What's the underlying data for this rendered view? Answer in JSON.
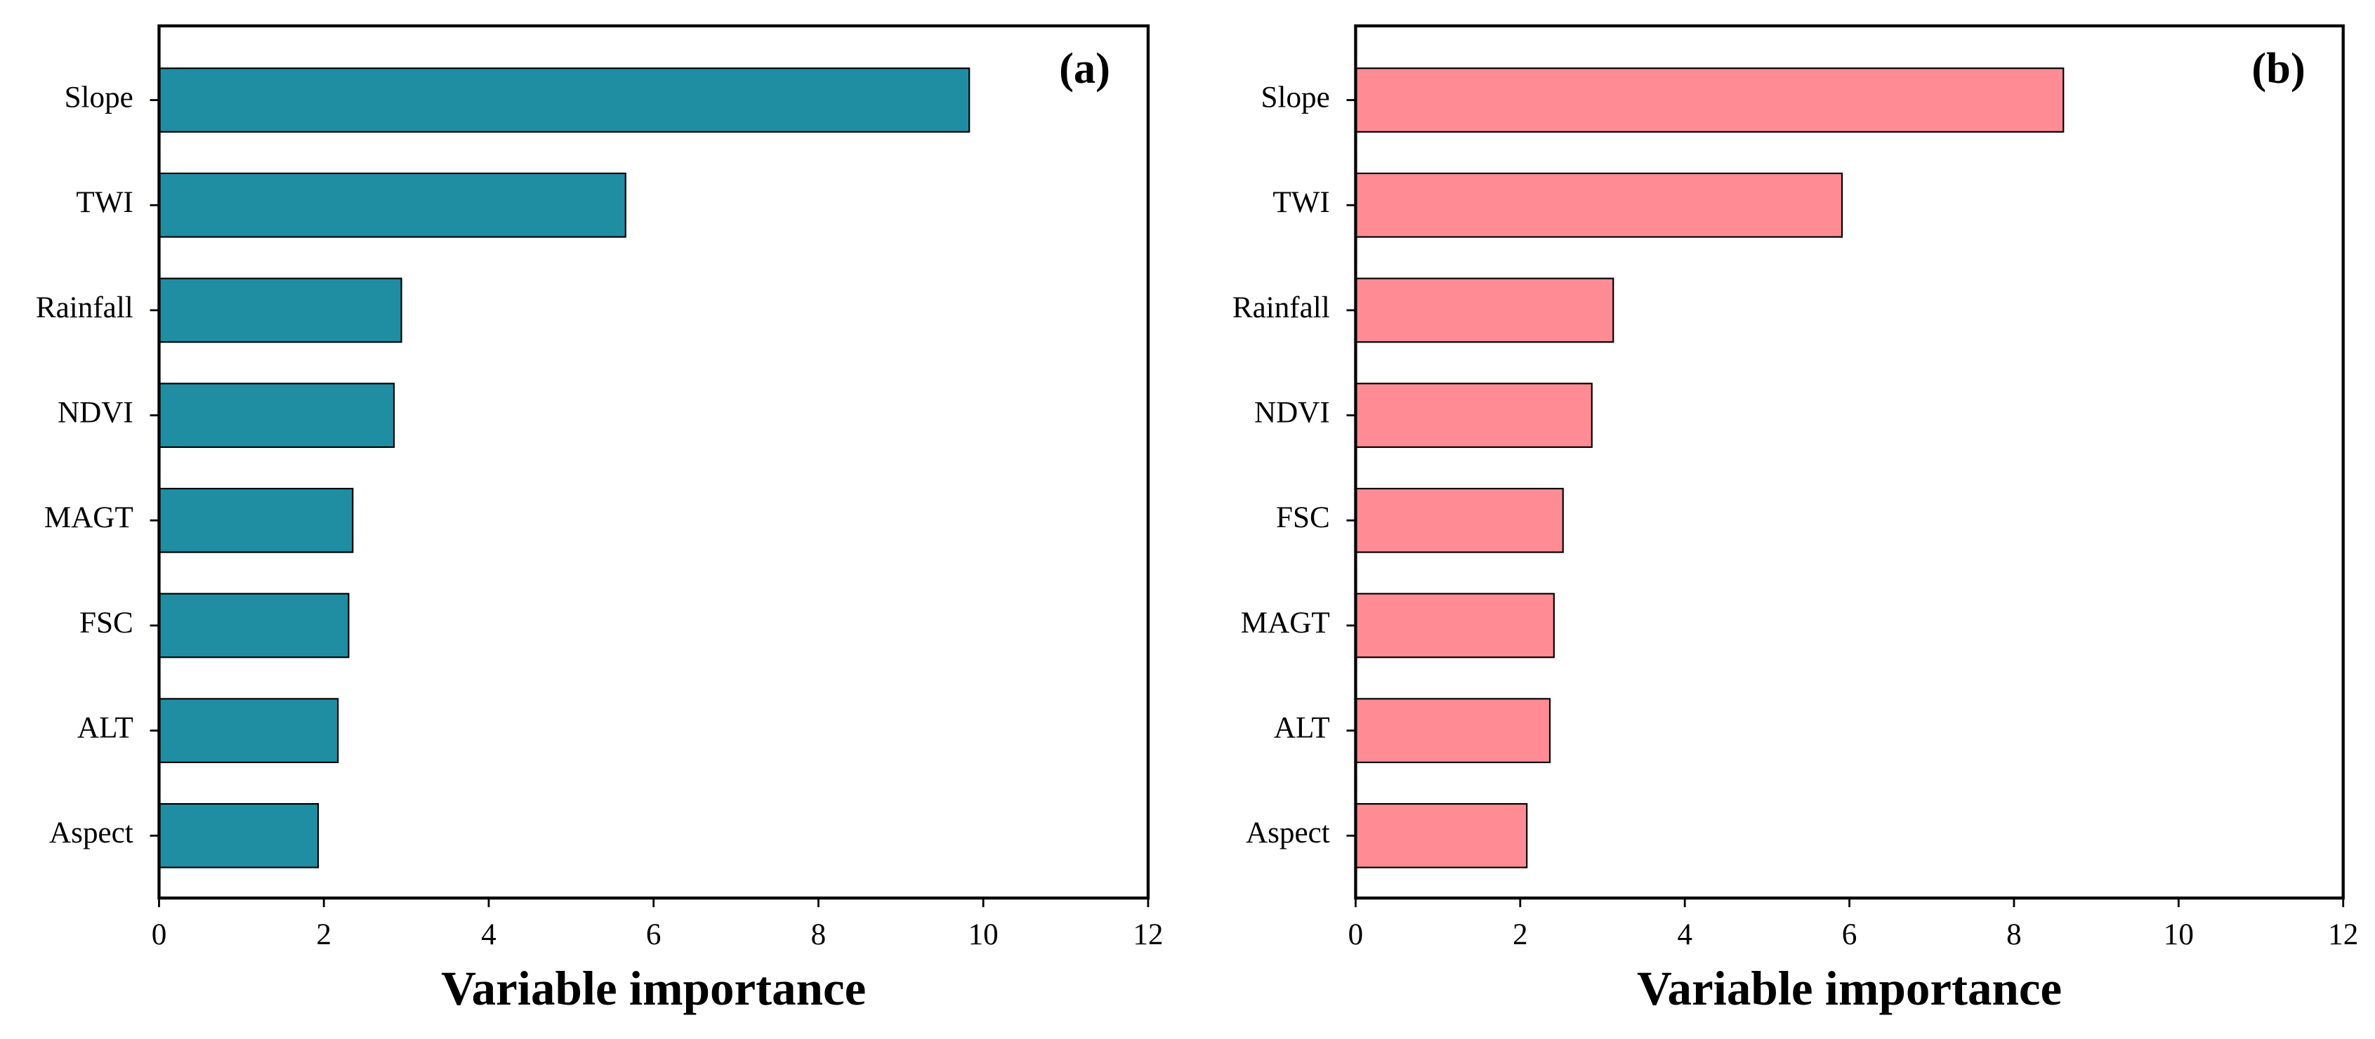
{
  "chart_data": [
    {
      "type": "bar",
      "orientation": "horizontal",
      "annotation": "(a)",
      "x_label": "Variable importance",
      "categories": [
        "Slope",
        "TWI",
        "Rainfall",
        "NDVI",
        "MAGT",
        "FSC",
        "ALT",
        "Aspect"
      ],
      "values": [
        9.83,
        5.66,
        2.94,
        2.85,
        2.35,
        2.3,
        2.17,
        1.93
      ],
      "color": "#1f8ea3",
      "xlim": [
        0,
        12
      ],
      "xticks": [
        0,
        2,
        4,
        6,
        8,
        10,
        12
      ],
      "grid": false
    },
    {
      "type": "bar",
      "orientation": "horizontal",
      "annotation": "(b)",
      "x_label": "Variable importance",
      "categories": [
        "Slope",
        "TWI",
        "Rainfall",
        "NDVI",
        "FSC",
        "MAGT",
        "ALT",
        "Aspect"
      ],
      "values": [
        8.6,
        5.91,
        3.13,
        2.87,
        2.52,
        2.41,
        2.36,
        2.08
      ],
      "color": "#ff8c94",
      "xlim": [
        0,
        12
      ],
      "xticks": [
        0,
        2,
        4,
        6,
        8,
        10,
        12
      ],
      "grid": false
    }
  ]
}
